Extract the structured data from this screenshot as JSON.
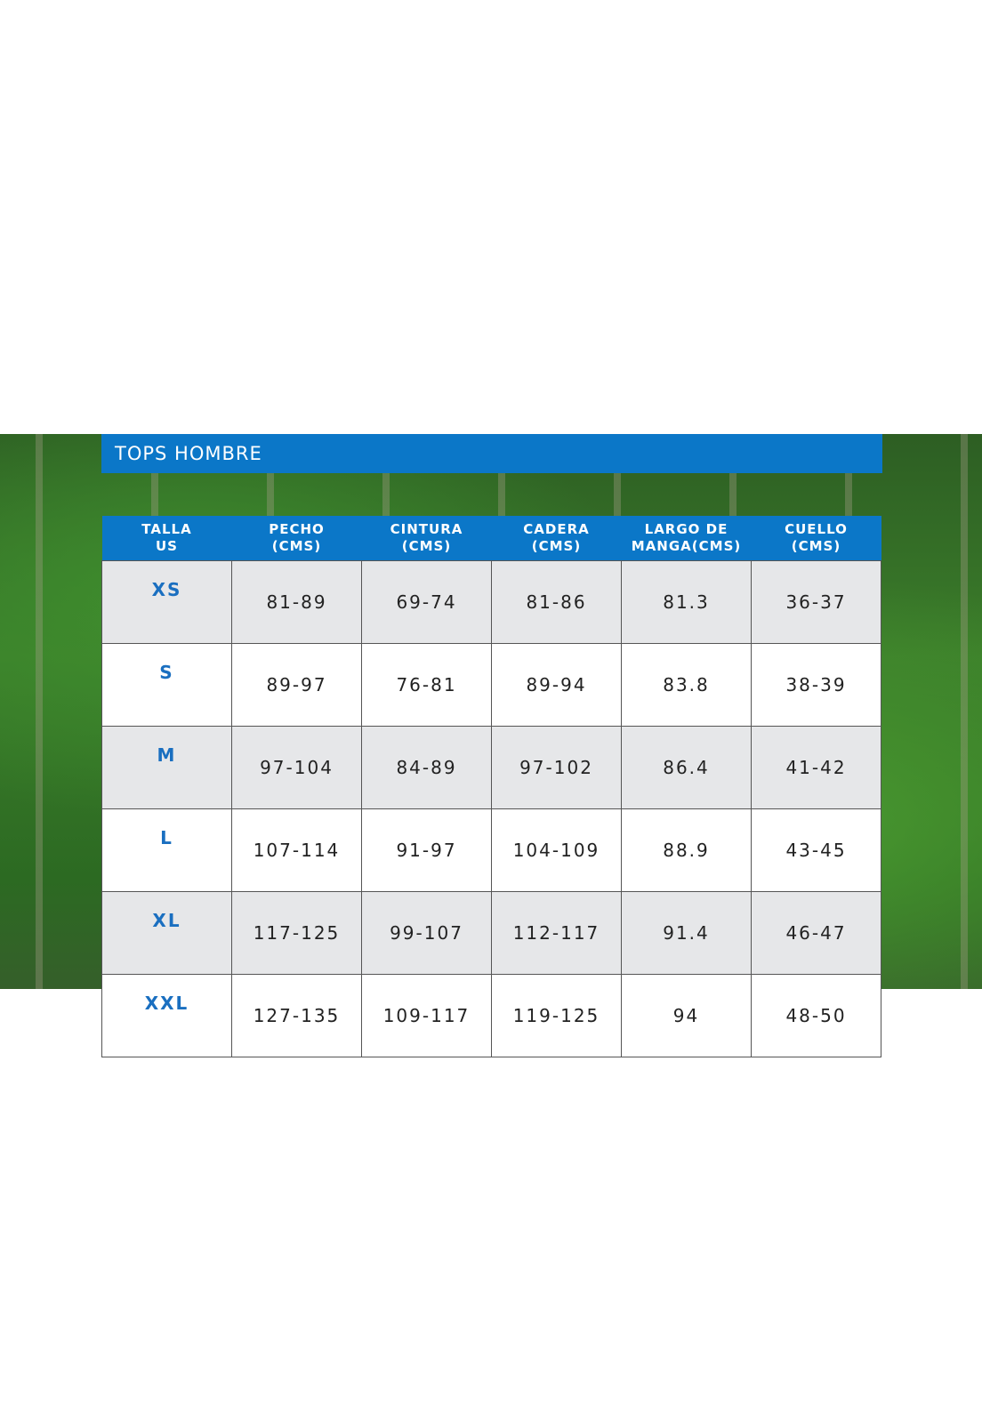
{
  "title": "TOPS HOMBRE",
  "colors": {
    "header_blue": "#0b77c8",
    "size_text": "#1a6fc0",
    "row_alt": "#e6e7e9"
  },
  "columns": [
    [
      "TALLA",
      "US"
    ],
    [
      "PECHO",
      "(CMS)"
    ],
    [
      "CINTURA",
      "(CMS)"
    ],
    [
      "CADERA",
      "(CMS)"
    ],
    [
      "LARGO DE",
      "MANGA(CMS)"
    ],
    [
      "CUELLO",
      "(CMS)"
    ]
  ],
  "rows": [
    [
      "XS",
      "81-89",
      "69-74",
      "81-86",
      "81.3",
      "36-37"
    ],
    [
      "S",
      "89-97",
      "76-81",
      "89-94",
      "83.8",
      "38-39"
    ],
    [
      "M",
      "97-104",
      "84-89",
      "97-102",
      "86.4",
      "41-42"
    ],
    [
      "L",
      "107-114",
      "91-97",
      "104-109",
      "88.9",
      "43-45"
    ],
    [
      "XL",
      "117-125",
      "99-107",
      "112-117",
      "91.4",
      "46-47"
    ],
    [
      "XXL",
      "127-135",
      "109-117",
      "119-125",
      "94",
      "48-50"
    ]
  ]
}
